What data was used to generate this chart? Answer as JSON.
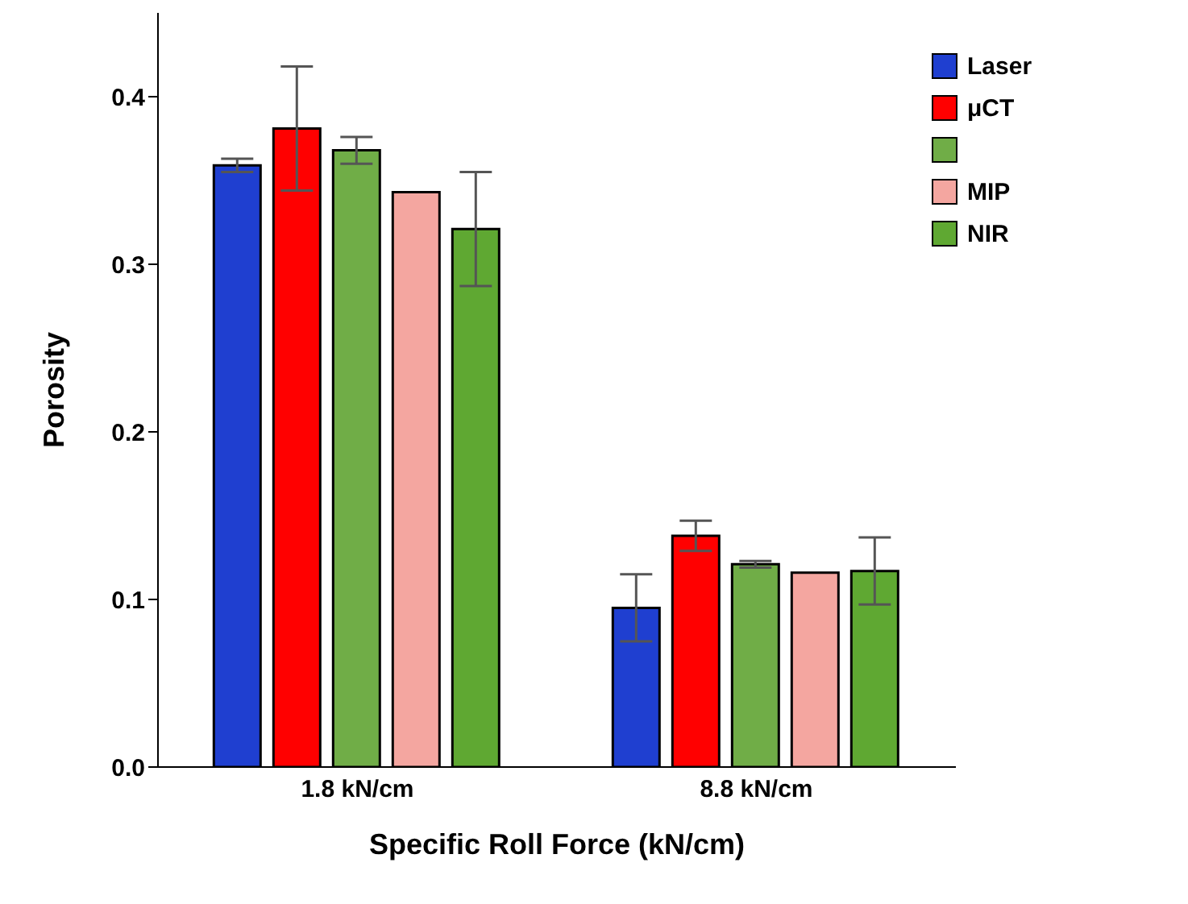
{
  "chart_data": {
    "type": "bar",
    "xlabel": "Specific Roll Force (kN/cm)",
    "ylabel": "Porosity",
    "categories": [
      "1.8 kN/cm",
      "8.8 kN/cm"
    ],
    "series": [
      {
        "name": "Laser",
        "color": "#1f3fd0",
        "values": [
          0.359,
          0.095
        ],
        "errors": [
          0.004,
          0.02
        ]
      },
      {
        "name": "μCT",
        "color": "#ff0000",
        "values": [
          0.381,
          0.138
        ],
        "errors": [
          0.037,
          0.009
        ]
      },
      {
        "color": "#70ad47",
        "values": [
          0.368,
          0.121
        ],
        "errors": [
          0.008,
          0.002
        ]
      },
      {
        "name": "MIP",
        "color": "#f4a6a0",
        "values": [
          0.343,
          0.116
        ],
        "errors": [
          null,
          null
        ]
      },
      {
        "name": "NIR",
        "color": "#5fa832",
        "values": [
          0.321,
          0.117
        ],
        "errors": [
          0.034,
          0.02
        ]
      }
    ],
    "ylim": [
      0,
      0.45
    ],
    "yticks": [
      {
        "value": 0,
        "label": "0.0"
      },
      0.1,
      0.2,
      0.3,
      0.4
    ],
    "grid": false,
    "legend": "top right"
  }
}
